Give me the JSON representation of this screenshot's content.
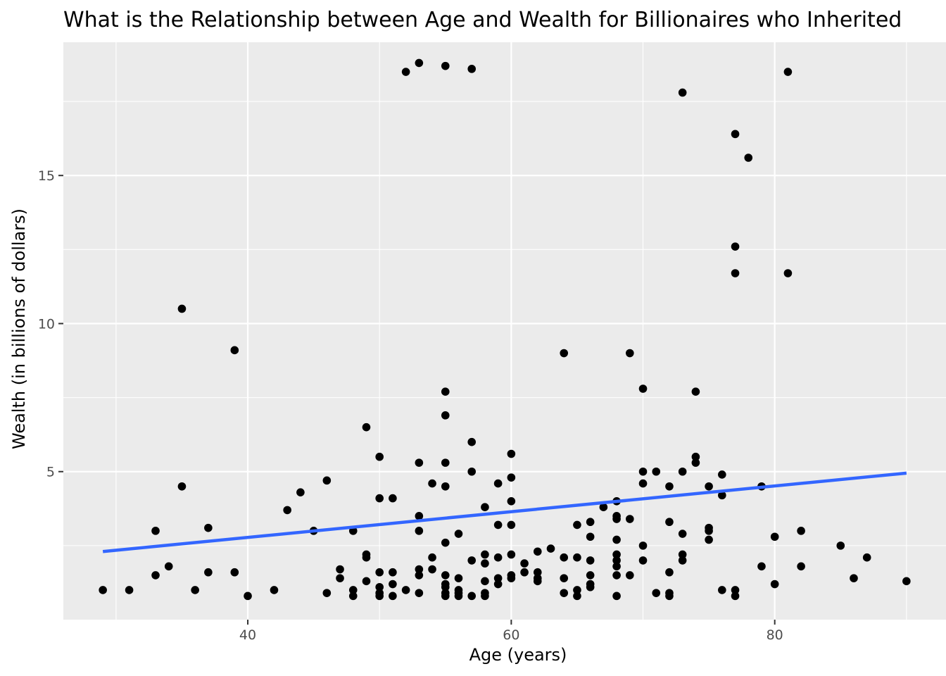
{
  "chart_data": {
    "type": "scatter",
    "title": "What is the Relationship between Age and Wealth for Billionaires who Inherited",
    "xlabel": "Age (years)",
    "ylabel": "Wealth (in billions of dollars)",
    "xlim": [
      26,
      93
    ],
    "ylim": [
      0,
      19.5
    ],
    "x_ticks": [
      40,
      60,
      80
    ],
    "x_minor_ticks": [
      30,
      50,
      70,
      90
    ],
    "y_ticks": [
      5,
      10,
      15
    ],
    "y_minor_ticks": [
      2.5,
      7.5,
      12.5,
      17.5
    ],
    "x_tick_labels": [
      "40",
      "60",
      "80"
    ],
    "y_tick_labels": [
      "5",
      "10",
      "15"
    ],
    "grid": true,
    "legend": "none",
    "colors": {
      "panel_background": "#ebebeb",
      "grid": "#ffffff",
      "points": "#000000",
      "trend_line": "#3366ff"
    },
    "trend_line": {
      "x": [
        29,
        90
      ],
      "y": [
        2.3,
        4.95
      ]
    },
    "series": [
      {
        "points": [
          [
            29,
            1.0
          ],
          [
            31,
            1.0
          ],
          [
            33,
            1.5
          ],
          [
            33,
            3.0
          ],
          [
            34,
            1.8
          ],
          [
            35,
            10.5
          ],
          [
            35,
            4.5
          ],
          [
            36,
            1.0
          ],
          [
            37,
            1.6
          ],
          [
            37,
            3.1
          ],
          [
            39,
            9.1
          ],
          [
            39,
            1.6
          ],
          [
            40,
            0.8
          ],
          [
            42,
            1.0
          ],
          [
            43,
            3.7
          ],
          [
            44,
            4.3
          ],
          [
            45,
            3.0
          ],
          [
            46,
            0.9
          ],
          [
            46,
            4.7
          ],
          [
            47,
            1.4
          ],
          [
            47,
            1.7
          ],
          [
            48,
            0.8
          ],
          [
            48,
            1.0
          ],
          [
            48,
            3.0
          ],
          [
            49,
            6.5
          ],
          [
            49,
            2.1
          ],
          [
            49,
            2.2
          ],
          [
            49,
            1.3
          ],
          [
            50,
            5.5
          ],
          [
            50,
            4.1
          ],
          [
            50,
            1.6
          ],
          [
            50,
            1.1
          ],
          [
            50,
            0.9
          ],
          [
            50,
            0.8
          ],
          [
            51,
            4.1
          ],
          [
            51,
            1.6
          ],
          [
            51,
            1.2
          ],
          [
            51,
            0.8
          ],
          [
            52,
            18.5
          ],
          [
            52,
            1.0
          ],
          [
            53,
            18.8
          ],
          [
            53,
            5.3
          ],
          [
            53,
            3.5
          ],
          [
            53,
            3.0
          ],
          [
            53,
            1.7
          ],
          [
            53,
            1.5
          ],
          [
            53,
            0.9
          ],
          [
            54,
            4.6
          ],
          [
            54,
            2.1
          ],
          [
            54,
            1.7
          ],
          [
            55,
            18.7
          ],
          [
            55,
            7.7
          ],
          [
            55,
            6.9
          ],
          [
            55,
            5.3
          ],
          [
            55,
            4.5
          ],
          [
            55,
            2.6
          ],
          [
            55,
            1.5
          ],
          [
            55,
            1.2
          ],
          [
            55,
            1.1
          ],
          [
            55,
            0.9
          ],
          [
            55,
            0.8
          ],
          [
            56,
            2.9
          ],
          [
            56,
            1.4
          ],
          [
            56,
            1.0
          ],
          [
            56,
            0.9
          ],
          [
            56,
            0.8
          ],
          [
            57,
            18.6
          ],
          [
            57,
            6.0
          ],
          [
            57,
            5.0
          ],
          [
            57,
            2.0
          ],
          [
            57,
            0.8
          ],
          [
            58,
            3.8
          ],
          [
            58,
            2.2
          ],
          [
            58,
            1.9
          ],
          [
            58,
            1.3
          ],
          [
            58,
            0.9
          ],
          [
            58,
            0.8
          ],
          [
            59,
            4.6
          ],
          [
            59,
            3.2
          ],
          [
            59,
            2.1
          ],
          [
            59,
            1.4
          ],
          [
            59,
            1.2
          ],
          [
            60,
            5.6
          ],
          [
            60,
            4.8
          ],
          [
            60,
            4.0
          ],
          [
            60,
            3.2
          ],
          [
            60,
            2.2
          ],
          [
            60,
            1.5
          ],
          [
            60,
            1.4
          ],
          [
            61,
            1.9
          ],
          [
            61,
            1.6
          ],
          [
            62,
            2.3
          ],
          [
            62,
            1.6
          ],
          [
            62,
            1.4
          ],
          [
            62,
            1.3
          ],
          [
            63,
            2.4
          ],
          [
            64,
            9.0
          ],
          [
            64,
            2.1
          ],
          [
            64,
            1.4
          ],
          [
            64,
            0.9
          ],
          [
            65,
            3.2
          ],
          [
            65,
            2.1
          ],
          [
            65,
            1.0
          ],
          [
            65,
            0.8
          ],
          [
            66,
            3.3
          ],
          [
            66,
            2.8
          ],
          [
            66,
            2.0
          ],
          [
            66,
            1.5
          ],
          [
            66,
            1.2
          ],
          [
            66,
            1.1
          ],
          [
            67,
            3.8
          ],
          [
            68,
            4.0
          ],
          [
            68,
            3.5
          ],
          [
            68,
            3.4
          ],
          [
            68,
            2.7
          ],
          [
            68,
            2.2
          ],
          [
            68,
            2.0
          ],
          [
            68,
            1.8
          ],
          [
            68,
            1.5
          ],
          [
            68,
            0.8
          ],
          [
            69,
            9.0
          ],
          [
            69,
            3.4
          ],
          [
            69,
            1.5
          ],
          [
            70,
            7.8
          ],
          [
            70,
            5.0
          ],
          [
            70,
            4.6
          ],
          [
            70,
            2.5
          ],
          [
            70,
            2.0
          ],
          [
            71,
            5.0
          ],
          [
            71,
            0.9
          ],
          [
            72,
            4.5
          ],
          [
            72,
            3.3
          ],
          [
            72,
            1.6
          ],
          [
            72,
            0.9
          ],
          [
            72,
            0.8
          ],
          [
            73,
            17.8
          ],
          [
            73,
            5.0
          ],
          [
            73,
            2.9
          ],
          [
            73,
            2.2
          ],
          [
            73,
            2.0
          ],
          [
            74,
            7.7
          ],
          [
            74,
            5.5
          ],
          [
            74,
            5.3
          ],
          [
            75,
            4.5
          ],
          [
            75,
            3.1
          ],
          [
            75,
            3.0
          ],
          [
            75,
            2.7
          ],
          [
            76,
            4.9
          ],
          [
            76,
            4.2
          ],
          [
            76,
            1.0
          ],
          [
            77,
            16.4
          ],
          [
            77,
            12.6
          ],
          [
            77,
            11.7
          ],
          [
            77,
            1.0
          ],
          [
            77,
            0.8
          ],
          [
            78,
            15.6
          ],
          [
            79,
            4.5
          ],
          [
            79,
            1.8
          ],
          [
            80,
            2.8
          ],
          [
            80,
            1.2
          ],
          [
            81,
            18.5
          ],
          [
            81,
            11.7
          ],
          [
            82,
            3.0
          ],
          [
            82,
            1.8
          ],
          [
            85,
            2.5
          ],
          [
            86,
            1.4
          ],
          [
            87,
            2.1
          ],
          [
            90,
            1.3
          ]
        ]
      }
    ]
  }
}
